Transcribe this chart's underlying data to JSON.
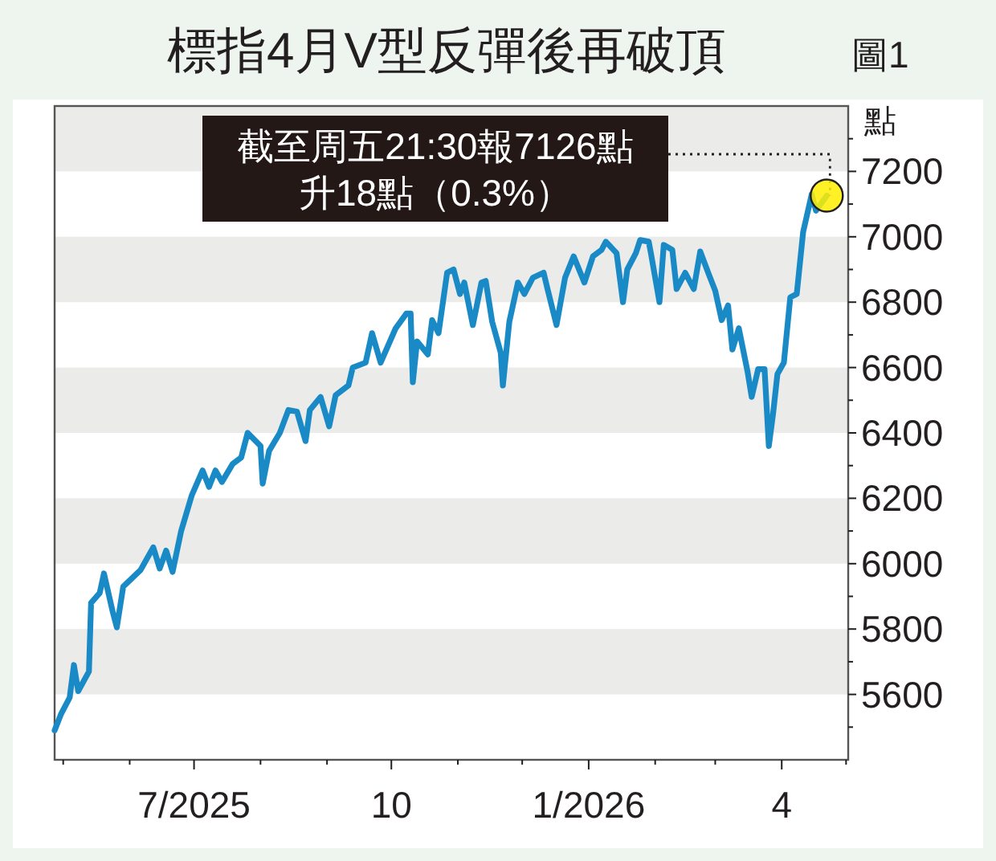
{
  "chart_data": {
    "type": "line",
    "title": "標指4月V型反彈後再破頂",
    "ylabel": "點",
    "annotations": [
      "圖1",
      {
        "text": "截至周五21:30報7126點",
        "x": "2026-04-22",
        "y": 7126
      },
      "升18點（0.3%）"
    ],
    "x": [
      "2025-04-27",
      "2025-04-30",
      "2025-05-04",
      "2025-05-06",
      "2025-05-08",
      "2025-05-13",
      "2025-05-14",
      "2025-05-18",
      "2025-05-20",
      "2025-05-24",
      "2025-05-26",
      "2025-05-29",
      "2025-06-06",
      "2025-06-09",
      "2025-06-12",
      "2025-06-15",
      "2025-06-18",
      "2025-06-21",
      "2025-06-25",
      "2025-06-30",
      "2025-07-05",
      "2025-07-08",
      "2025-07-11",
      "2025-07-14",
      "2025-07-19",
      "2025-07-23",
      "2025-07-26",
      "2025-08-01",
      "2025-08-02",
      "2025-08-05",
      "2025-08-10",
      "2025-08-14",
      "2025-08-18",
      "2025-08-22",
      "2025-08-24",
      "2025-08-29",
      "2025-09-02",
      "2025-09-05",
      "2025-09-11",
      "2025-09-13",
      "2025-09-19",
      "2025-09-22",
      "2025-09-26",
      "2025-10-03",
      "2025-10-08",
      "2025-10-10",
      "2025-10-11",
      "2025-10-13",
      "2025-10-18",
      "2025-10-20",
      "2025-10-23",
      "2025-10-27",
      "2025-10-30",
      "2025-11-02",
      "2025-11-04",
      "2025-11-08",
      "2025-11-12",
      "2025-11-14",
      "2025-11-17",
      "2025-11-21",
      "2025-11-22",
      "2025-11-25",
      "2025-11-29",
      "2025-12-02",
      "2025-12-06",
      "2025-12-11",
      "2025-12-13",
      "2025-12-17",
      "2025-12-21",
      "2025-12-25",
      "2025-12-30",
      "2026-01-03",
      "2026-01-07",
      "2026-01-09",
      "2026-01-14",
      "2026-01-17",
      "2026-01-19",
      "2026-01-23",
      "2026-01-25",
      "2026-01-29",
      "2026-01-30",
      "2026-02-03",
      "2026-02-05",
      "2026-02-09",
      "2026-02-11",
      "2026-02-15",
      "2026-02-19",
      "2026-02-22",
      "2026-02-26",
      "2026-03-01",
      "2026-03-04",
      "2026-03-07",
      "2026-03-09",
      "2026-03-12",
      "2026-03-16",
      "2026-03-18",
      "2026-03-21",
      "2026-03-24",
      "2026-03-26",
      "2026-03-28",
      "2026-03-30",
      "2026-04-02",
      "2026-04-05",
      "2026-04-08",
      "2026-04-11",
      "2026-04-15",
      "2026-04-17",
      "2026-04-22"
    ],
    "series": [
      {
        "color": "#1a8ac6",
        "values": [
          5490,
          5540,
          5590,
          5690,
          5610,
          5670,
          5880,
          5910,
          5970,
          5855,
          5805,
          5930,
          5980,
          6015,
          6050,
          5985,
          6040,
          5975,
          6100,
          6210,
          6285,
          6235,
          6285,
          6250,
          6305,
          6325,
          6400,
          6360,
          6245,
          6345,
          6400,
          6470,
          6465,
          6375,
          6470,
          6510,
          6420,
          6515,
          6545,
          6600,
          6615,
          6705,
          6615,
          6720,
          6765,
          6765,
          6555,
          6680,
          6640,
          6745,
          6705,
          6890,
          6900,
          6825,
          6860,
          6730,
          6860,
          6865,
          6740,
          6645,
          6545,
          6740,
          6860,
          6825,
          6875,
          6890,
          6835,
          6730,
          6875,
          6940,
          6860,
          6940,
          6960,
          6985,
          6950,
          6800,
          6900,
          6950,
          6990,
          6985,
          6950,
          6800,
          6975,
          6960,
          6840,
          6890,
          6840,
          6955,
          6885,
          6835,
          6745,
          6790,
          6655,
          6720,
          6590,
          6510,
          6595,
          6595,
          6360,
          6460,
          6580,
          6615,
          6815,
          6825,
          7015,
          7130,
          7080,
          7126
        ]
      }
    ],
    "xlim": [
      "2025-04-27",
      "2026-05-02"
    ],
    "xticks": [
      {
        "value": "2025-05-01",
        "label": null
      },
      {
        "value": "2025-06-01",
        "label": null
      },
      {
        "value": "2025-07-01",
        "label": "7/2025"
      },
      {
        "value": "2025-08-01",
        "label": null
      },
      {
        "value": "2025-09-01",
        "label": null
      },
      {
        "value": "2025-10-01",
        "label": "10"
      },
      {
        "value": "2025-11-01",
        "label": null
      },
      {
        "value": "2025-12-01",
        "label": null
      },
      {
        "value": "2026-01-01",
        "label": "1/2026"
      },
      {
        "value": "2026-02-01",
        "label": null
      },
      {
        "value": "2026-03-01",
        "label": null
      },
      {
        "value": "2026-04-01",
        "label": "4"
      },
      {
        "value": "2026-05-01",
        "label": null
      }
    ],
    "ylim": [
      5400,
      7400
    ],
    "yticks": [
      {
        "value": 5500,
        "label": null
      },
      5600,
      {
        "value": 5700,
        "label": null
      },
      5800,
      {
        "value": 5900,
        "label": null
      },
      6000,
      {
        "value": 6100,
        "label": null
      },
      6200,
      {
        "value": 6300,
        "label": null
      },
      6400,
      {
        "value": 6500,
        "label": null
      },
      6600,
      {
        "value": 6700,
        "label": null
      },
      6800,
      {
        "value": 6900,
        "label": null
      },
      7000,
      {
        "value": 7100,
        "label": null
      },
      7200,
      {
        "value": 7300,
        "label": null
      }
    ],
    "bands": [
      {
        "axis": "y",
        "from": 5600,
        "to": 5800,
        "color": "#ebecea"
      },
      {
        "axis": "y",
        "from": 6000,
        "to": 6200,
        "color": "#ebecea"
      },
      {
        "axis": "y",
        "from": 6400,
        "to": 6600,
        "color": "#ebecea"
      },
      {
        "axis": "y",
        "from": 6800,
        "to": 7000,
        "color": "#ebecea"
      },
      {
        "axis": "y",
        "from": 7200,
        "to": 7400,
        "color": "#ebecea"
      }
    ],
    "grid": false,
    "marker": "none",
    "line_style": "solid"
  }
}
